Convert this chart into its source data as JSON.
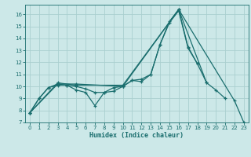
{
  "xlabel": "Humidex (Indice chaleur)",
  "bg_color": "#cce8e8",
  "line_color": "#1a6e6e",
  "grid_color": "#aacfcf",
  "xlim": [
    -0.5,
    23.5
  ],
  "ylim": [
    7,
    16.8
  ],
  "yticks": [
    7,
    8,
    9,
    10,
    11,
    12,
    13,
    14,
    15,
    16
  ],
  "xticks": [
    0,
    1,
    2,
    3,
    4,
    5,
    6,
    7,
    8,
    9,
    10,
    11,
    12,
    13,
    14,
    15,
    16,
    17,
    18,
    19,
    20,
    21,
    22,
    23
  ],
  "series": [
    {
      "x": [
        0,
        1,
        2,
        3,
        4,
        5,
        6,
        7,
        8,
        9,
        10,
        11,
        12,
        13,
        14,
        15,
        16,
        17,
        18,
        19,
        20,
        21
      ],
      "y": [
        7.8,
        9.0,
        9.9,
        10.2,
        10.1,
        9.7,
        9.5,
        8.4,
        9.5,
        9.6,
        10.0,
        10.5,
        10.4,
        11.0,
        13.5,
        15.3,
        16.3,
        13.2,
        11.9,
        10.3,
        9.7,
        9.0
      ]
    },
    {
      "x": [
        0,
        1,
        2,
        3,
        4,
        5,
        6,
        7,
        8,
        9,
        10,
        11,
        12,
        13,
        14,
        15,
        16,
        17,
        18
      ],
      "y": [
        7.8,
        9.0,
        9.9,
        10.1,
        10.1,
        10.0,
        9.8,
        9.5,
        9.5,
        9.9,
        10.0,
        10.5,
        10.6,
        11.0,
        13.5,
        15.4,
        16.4,
        13.3,
        11.9
      ]
    },
    {
      "x": [
        0,
        3,
        5,
        10,
        16,
        22,
        23
      ],
      "y": [
        7.8,
        10.2,
        10.2,
        10.0,
        16.4,
        8.8,
        7.0
      ]
    },
    {
      "x": [
        0,
        3,
        5,
        10,
        16,
        19
      ],
      "y": [
        7.8,
        10.3,
        10.1,
        10.1,
        16.4,
        10.3
      ]
    }
  ]
}
